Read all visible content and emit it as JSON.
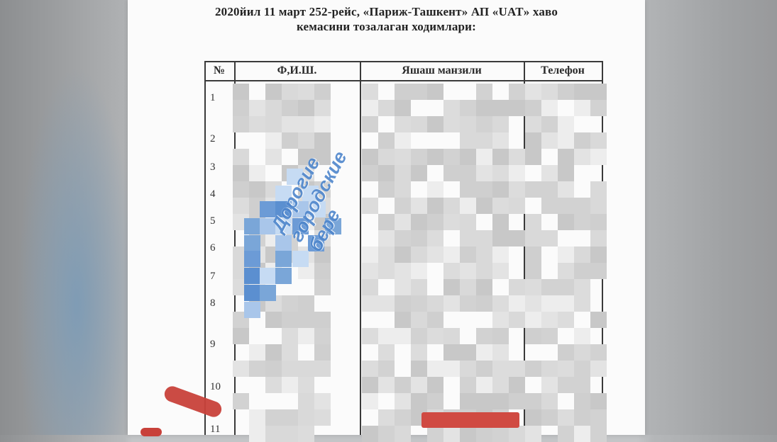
{
  "document": {
    "title_line1": "2020йил 11 март 252-рейс, «Париж-Ташкент» АП «UAT» хаво",
    "title_line2": "кемасини тозалаган ходимлари:"
  },
  "table": {
    "headers": [
      "№",
      "Ф,И.Ш.",
      "Яшаш манзили",
      "Телефон"
    ],
    "row_numbers": [
      "1",
      "2",
      "3",
      "4",
      "5",
      "6",
      "7",
      "8",
      "9",
      "10",
      "11"
    ]
  },
  "watermark": {
    "lines": [
      "Дорогие",
      "городские",
      "бере"
    ],
    "color": "#4f86cc"
  },
  "colors": {
    "paper": "#fbfbfb",
    "censor_pixels": "#cfcfcf",
    "red_marks": "#c8413a"
  }
}
